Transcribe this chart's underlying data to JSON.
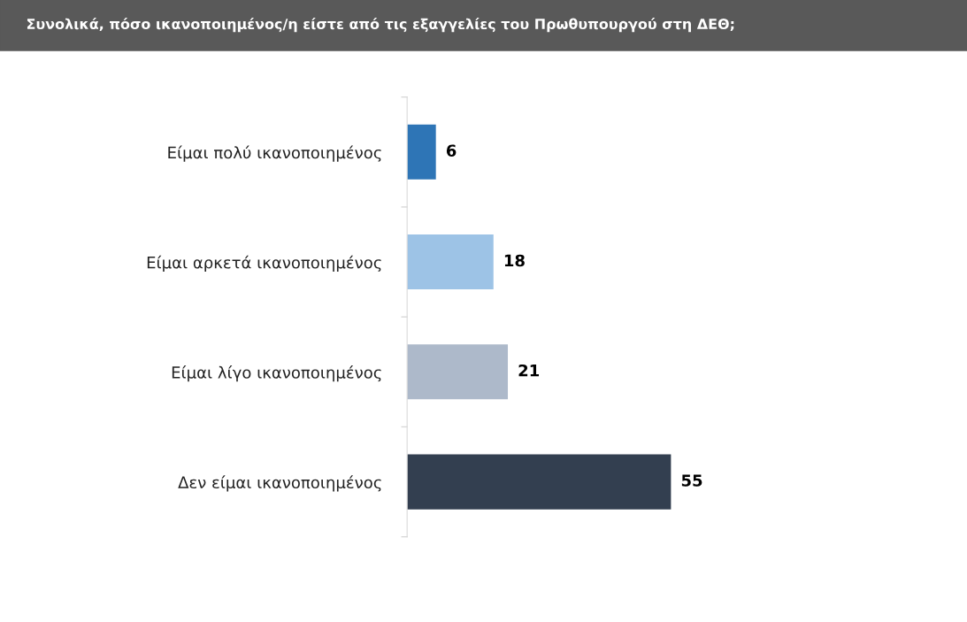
{
  "chart_data": {
    "type": "bar",
    "orientation": "horizontal",
    "title": "Συνολικά, πόσο ικανοποιημένος/η είστε από τις εξαγγελίες του Πρωθυπουργού στη ΔΕΘ;",
    "categories": [
      "Είμαι πολύ ικανοποιημένος",
      "Είμαι αρκετά ικανοποιημένος",
      "Είμαι λίγο ικανοποιημένος",
      "Δεν είμαι ικανοποιημένος"
    ],
    "values": [
      6,
      18,
      21,
      55
    ],
    "colors": [
      "#2e75b6",
      "#9dc3e6",
      "#adb9ca",
      "#333f50"
    ],
    "data_labels": true,
    "grid": false,
    "legend": false
  }
}
